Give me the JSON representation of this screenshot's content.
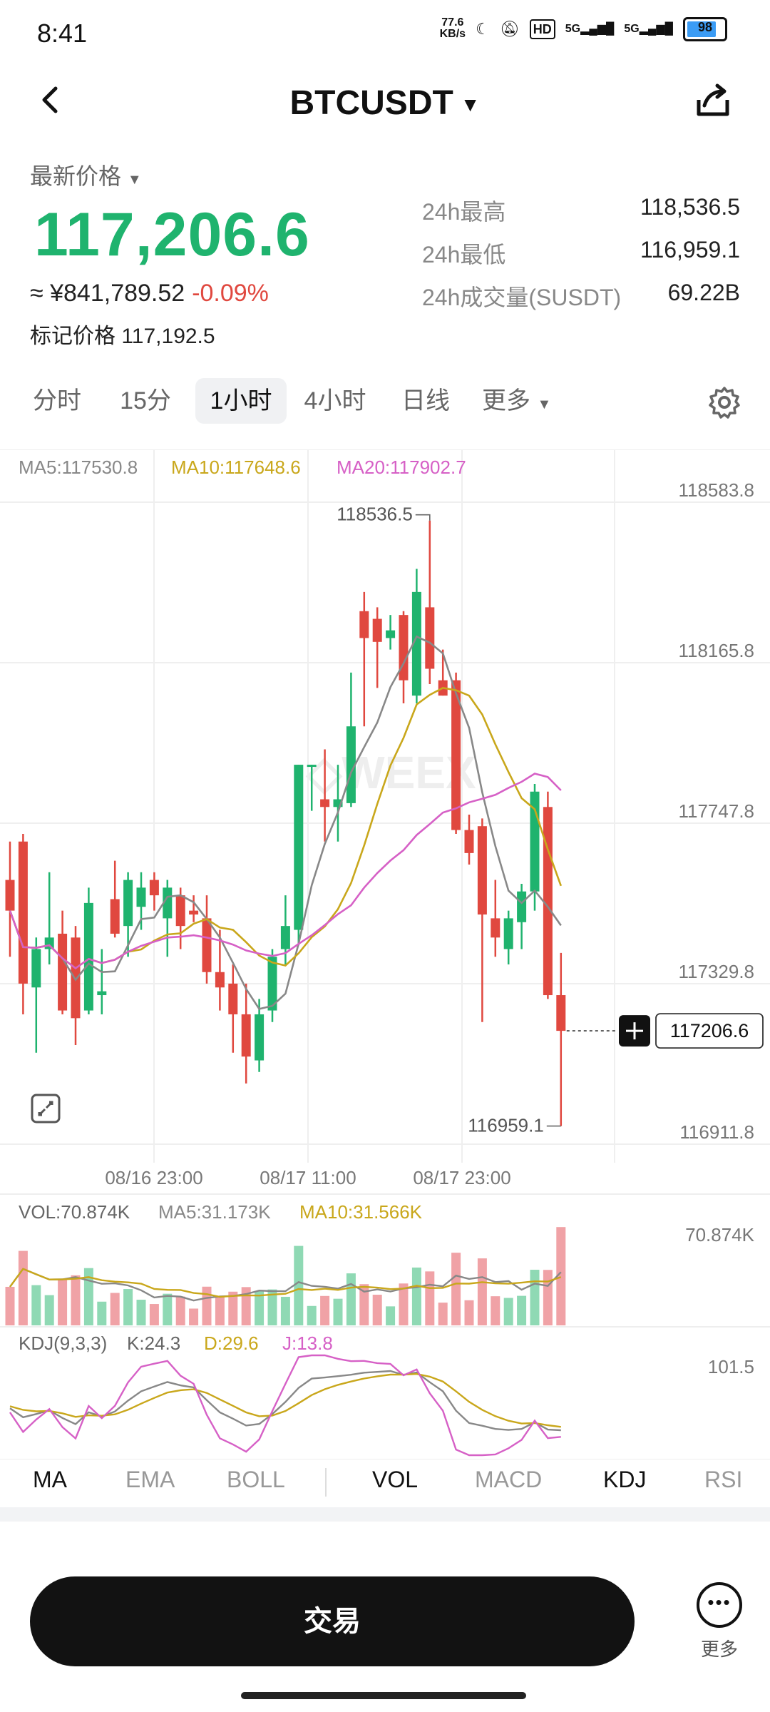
{
  "status_bar": {
    "time": "8:41",
    "net_speed": "77.6\nKB/s",
    "net_speed_top": "77.6",
    "net_speed_bottom": "KB/s",
    "hd": "HD",
    "signal1": "5G",
    "signal2": "5G",
    "battery": "98"
  },
  "header": {
    "title": "BTCUSDT",
    "back_icon": "chevron-left-icon",
    "share_icon": "share-icon"
  },
  "price": {
    "label": "最新价格",
    "last": "117,206.6",
    "cny": "≈ ¥841,789.52",
    "change": "-0.09%",
    "mark_label": "标记价格",
    "mark_value": "117,192.5",
    "up_color": "#1fb36e",
    "down_color": "#e0483f"
  },
  "stats": [
    {
      "label": "24h最高",
      "value": "118,536.5"
    },
    {
      "label": "24h最低",
      "value": "116,959.1"
    },
    {
      "label": "24h成交量(SUSDT)",
      "value": "69.22B"
    }
  ],
  "interval_tabs": [
    {
      "label": "分时",
      "active": false
    },
    {
      "label": "15分",
      "active": false
    },
    {
      "label": "1小时",
      "active": true
    },
    {
      "label": "4小时",
      "active": false
    },
    {
      "label": "日线",
      "active": false
    },
    {
      "label": "更多",
      "active": false
    }
  ],
  "chart_data": {
    "type": "candlestick",
    "interval": "1小时",
    "ma_legend": [
      {
        "name": "MA5",
        "value": "117530.8",
        "color": "#888888"
      },
      {
        "name": "MA10",
        "value": "117648.6",
        "color": "#c9a71b"
      },
      {
        "name": "MA20",
        "value": "117902.7",
        "color": "#d660c6"
      }
    ],
    "y_ticks": [
      "118583.8",
      "118165.8",
      "117747.8",
      "117329.8",
      "116911.8"
    ],
    "ylim": [
      116911.8,
      118583.8
    ],
    "x_ticks": [
      "08/16 23:00",
      "08/17 11:00",
      "08/17 23:00"
    ],
    "high_annotation": "118536.5",
    "low_annotation": "116959.1",
    "current_price_tag": "117206.6",
    "candles": [
      {
        "o": 117600,
        "h": 117700,
        "l": 117400,
        "c": 117520
      },
      {
        "o": 117700,
        "h": 117720,
        "l": 117250,
        "c": 117330
      },
      {
        "o": 117320,
        "h": 117450,
        "l": 117150,
        "c": 117420
      },
      {
        "o": 117420,
        "h": 117620,
        "l": 117380,
        "c": 117450
      },
      {
        "o": 117460,
        "h": 117520,
        "l": 117250,
        "c": 117260
      },
      {
        "o": 117450,
        "h": 117480,
        "l": 117170,
        "c": 117240
      },
      {
        "o": 117260,
        "h": 117580,
        "l": 117250,
        "c": 117540
      },
      {
        "o": 117300,
        "h": 117420,
        "l": 117250,
        "c": 117310
      },
      {
        "o": 117550,
        "h": 117650,
        "l": 117450,
        "c": 117460
      },
      {
        "o": 117480,
        "h": 117620,
        "l": 117400,
        "c": 117600
      },
      {
        "o": 117530,
        "h": 117620,
        "l": 117470,
        "c": 117580
      },
      {
        "o": 117600,
        "h": 117620,
        "l": 117520,
        "c": 117560
      },
      {
        "o": 117500,
        "h": 117600,
        "l": 117400,
        "c": 117580
      },
      {
        "o": 117560,
        "h": 117580,
        "l": 117420,
        "c": 117480
      },
      {
        "o": 117520,
        "h": 117560,
        "l": 117490,
        "c": 117510
      },
      {
        "o": 117500,
        "h": 117560,
        "l": 117330,
        "c": 117360
      },
      {
        "o": 117360,
        "h": 117470,
        "l": 117260,
        "c": 117320
      },
      {
        "o": 117330,
        "h": 117380,
        "l": 117150,
        "c": 117250
      },
      {
        "o": 117250,
        "h": 117330,
        "l": 117070,
        "c": 117140
      },
      {
        "o": 117130,
        "h": 117290,
        "l": 117100,
        "c": 117250
      },
      {
        "o": 117260,
        "h": 117420,
        "l": 117230,
        "c": 117400
      },
      {
        "o": 117420,
        "h": 117560,
        "l": 117380,
        "c": 117480
      },
      {
        "o": 117470,
        "h": 117900,
        "l": 117430,
        "c": 117900
      },
      {
        "o": 117900,
        "h": 117900,
        "l": 117780,
        "c": 117900
      },
      {
        "o": 117810,
        "h": 117940,
        "l": 117700,
        "c": 117790
      },
      {
        "o": 117790,
        "h": 117900,
        "l": 117700,
        "c": 117810
      },
      {
        "o": 117800,
        "h": 118140,
        "l": 117790,
        "c": 118000
      },
      {
        "o": 118300,
        "h": 118350,
        "l": 118000,
        "c": 118230
      },
      {
        "o": 118280,
        "h": 118310,
        "l": 118100,
        "c": 118220
      },
      {
        "o": 118230,
        "h": 118290,
        "l": 118200,
        "c": 118250
      },
      {
        "o": 118290,
        "h": 118300,
        "l": 118060,
        "c": 118120
      },
      {
        "o": 118080,
        "h": 118410,
        "l": 118060,
        "c": 118350
      },
      {
        "o": 118310,
        "h": 118536,
        "l": 118110,
        "c": 118150
      },
      {
        "o": 118120,
        "h": 118200,
        "l": 118080,
        "c": 118080
      },
      {
        "o": 118120,
        "h": 118140,
        "l": 117720,
        "c": 117730
      },
      {
        "o": 117730,
        "h": 117770,
        "l": 117640,
        "c": 117670
      },
      {
        "o": 117740,
        "h": 117760,
        "l": 117230,
        "c": 117510
      },
      {
        "o": 117500,
        "h": 117600,
        "l": 117400,
        "c": 117450
      },
      {
        "o": 117420,
        "h": 117520,
        "l": 117380,
        "c": 117500
      },
      {
        "o": 117490,
        "h": 117590,
        "l": 117420,
        "c": 117570
      },
      {
        "o": 117570,
        "h": 117850,
        "l": 117520,
        "c": 117830
      },
      {
        "o": 117790,
        "h": 117830,
        "l": 117290,
        "c": 117300
      },
      {
        "o": 117300,
        "h": 117410,
        "l": 116959,
        "c": 117207
      }
    ]
  },
  "volume": {
    "legend": {
      "vol": "VOL:70.874K",
      "ma5": "MA5:31.173K",
      "ma10": "MA10:31.566K"
    },
    "max_label": "70.874K"
  },
  "kdj": {
    "legend": {
      "name": "KDJ(9,3,3)",
      "k": "K:24.3",
      "d": "D:29.6",
      "j": "J:13.8"
    },
    "max_label": "101.5"
  },
  "indicator_tabs": [
    {
      "label": "MA",
      "active": true
    },
    {
      "label": "EMA",
      "active": false
    },
    {
      "label": "BOLL",
      "active": false
    },
    {
      "label": "VOL",
      "active": true
    },
    {
      "label": "MACD",
      "active": false
    },
    {
      "label": "KDJ",
      "active": true
    },
    {
      "label": "RSI",
      "active": false
    }
  ],
  "bottom": {
    "trade_label": "交易",
    "more_label": "更多"
  }
}
